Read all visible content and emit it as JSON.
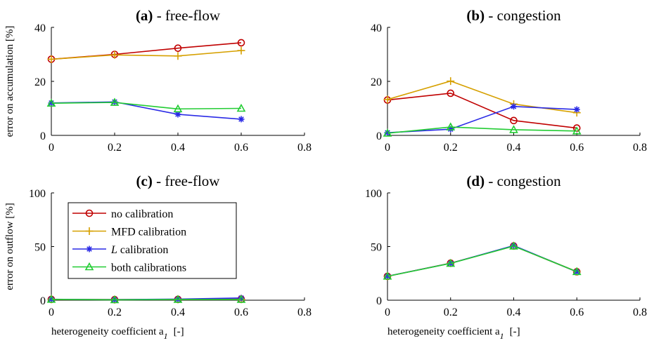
{
  "figure": {
    "xlabel": "heterogeneity coefficient a",
    "xlabel_sub": "1",
    "xlabel_unit": "[-]"
  },
  "legend": {
    "placement": "inside panel (c), upper-left",
    "entries": [
      {
        "label": "no calibration",
        "color": "#c00000",
        "marker": "circle"
      },
      {
        "label": "MFD calibration",
        "color": "#d6a000",
        "marker": "plus"
      },
      {
        "label": "L calibration",
        "italic_prefix": "L",
        "label_rest": " calibration",
        "color": "#2a2ae6",
        "marker": "asterisk"
      },
      {
        "label": "both calibrations",
        "color": "#22cc33",
        "marker": "triangle"
      }
    ]
  },
  "chart_data": [
    {
      "type": "line",
      "title_bold": "(a)",
      "title_rest": " - free-flow",
      "ylabel": "error on accumulation [%]",
      "xlim": [
        0,
        0.8
      ],
      "ylim": [
        0,
        40
      ],
      "xticks": [
        0,
        0.2,
        0.4,
        0.6,
        0.8
      ],
      "yticks": [
        0,
        20,
        40
      ],
      "x": [
        0,
        0.2,
        0.4,
        0.6
      ],
      "series": [
        {
          "name": "no calibration",
          "values": [
            28.2,
            30.0,
            32.3,
            34.3
          ]
        },
        {
          "name": "MFD calibration",
          "values": [
            28.2,
            29.8,
            29.4,
            31.4
          ]
        },
        {
          "name": "L calibration",
          "values": [
            12.0,
            12.4,
            7.8,
            6.0
          ]
        },
        {
          "name": "both calibrations",
          "values": [
            11.9,
            12.2,
            9.8,
            10.0
          ]
        }
      ]
    },
    {
      "type": "line",
      "title_bold": "(b)",
      "title_rest": " - congestion",
      "ylabel": "",
      "xlim": [
        0,
        0.8
      ],
      "ylim": [
        0,
        40
      ],
      "xticks": [
        0,
        0.2,
        0.4,
        0.6,
        0.8
      ],
      "yticks": [
        0,
        20,
        40
      ],
      "x": [
        0,
        0.2,
        0.4,
        0.6
      ],
      "series": [
        {
          "name": "no calibration",
          "values": [
            13.1,
            15.6,
            5.5,
            2.7
          ]
        },
        {
          "name": "MFD calibration",
          "values": [
            13.3,
            20.1,
            11.6,
            8.4
          ]
        },
        {
          "name": "L calibration",
          "values": [
            1.0,
            2.3,
            10.7,
            9.6
          ]
        },
        {
          "name": "both calibrations",
          "values": [
            0.8,
            3.1,
            2.1,
            1.6
          ]
        }
      ]
    },
    {
      "type": "line",
      "title_bold": "(c)",
      "title_rest": " - free-flow",
      "ylabel": "error on outflow [%]",
      "xlim": [
        0,
        0.8
      ],
      "ylim": [
        0,
        100
      ],
      "xticks": [
        0,
        0.2,
        0.4,
        0.6,
        0.8
      ],
      "yticks": [
        0,
        50,
        100
      ],
      "x": [
        0,
        0.2,
        0.4,
        0.6
      ],
      "series": [
        {
          "name": "no calibration",
          "values": [
            0.8,
            0.5,
            0.8,
            1.0
          ]
        },
        {
          "name": "MFD calibration",
          "values": [
            0.8,
            0.5,
            0.7,
            0.8
          ]
        },
        {
          "name": "L calibration",
          "values": [
            0.9,
            0.5,
            1.0,
            2.1
          ]
        },
        {
          "name": "both calibrations",
          "values": [
            0.8,
            0.4,
            0.7,
            0.7
          ]
        }
      ]
    },
    {
      "type": "line",
      "title_bold": "(d)",
      "title_rest": " - congestion",
      "ylabel": "",
      "xlim": [
        0,
        0.8
      ],
      "ylim": [
        0,
        100
      ],
      "xticks": [
        0,
        0.2,
        0.4,
        0.6,
        0.8
      ],
      "yticks": [
        0,
        50,
        100
      ],
      "x": [
        0,
        0.2,
        0.4,
        0.6
      ],
      "series": [
        {
          "name": "no calibration",
          "values": [
            22.3,
            34.5,
            50.5,
            26.5
          ]
        },
        {
          "name": "MFD calibration",
          "values": [
            22.3,
            34.5,
            50.6,
            26.7
          ]
        },
        {
          "name": "L calibration",
          "values": [
            22.4,
            34.4,
            50.9,
            26.5
          ]
        },
        {
          "name": "both calibrations",
          "values": [
            22.3,
            34.3,
            50.4,
            26.6
          ]
        }
      ]
    }
  ]
}
